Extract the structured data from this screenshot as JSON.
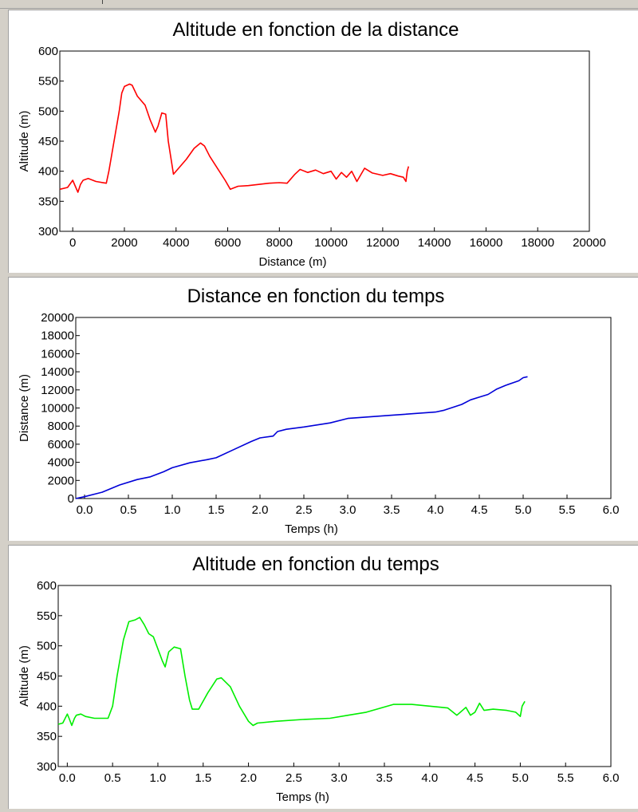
{
  "chart_data": [
    {
      "type": "line",
      "title": "Altitude en fonction de la distance",
      "xlabel": "Distance (m)",
      "ylabel": "Altitude (m)",
      "xlim": [
        -500,
        20000
      ],
      "ylim": [
        300,
        600
      ],
      "xticks": [
        0,
        2000,
        4000,
        6000,
        8000,
        10000,
        12000,
        14000,
        16000,
        18000,
        20000
      ],
      "yticks": [
        300,
        350,
        400,
        450,
        500,
        550,
        600
      ],
      "color": "#ff0000",
      "grid": false,
      "series": [
        {
          "name": "",
          "x": [
            -500,
            -200,
            0,
            100,
            200,
            300,
            400,
            600,
            900,
            1300,
            1400,
            1600,
            1800,
            1900,
            2000,
            2200,
            2300,
            2500,
            2800,
            3000,
            3200,
            3300,
            3450,
            3600,
            3700,
            3900,
            4100,
            4400,
            4700,
            4950,
            5100,
            5300,
            5600,
            5900,
            6100,
            6400,
            6800,
            7200,
            7600,
            8000,
            8300,
            8600,
            8800,
            9100,
            9400,
            9700,
            10000,
            10200,
            10400,
            10600,
            10800,
            11000,
            11300,
            11600,
            12000,
            12300,
            12600,
            12800,
            12900,
            12950,
            13000
          ],
          "y": [
            370,
            373,
            385,
            375,
            365,
            378,
            385,
            388,
            383,
            380,
            400,
            450,
            500,
            530,
            541,
            545,
            543,
            525,
            510,
            485,
            465,
            475,
            497,
            495,
            450,
            395,
            405,
            420,
            438,
            447,
            442,
            425,
            405,
            385,
            370,
            375,
            376,
            378,
            380,
            381,
            380,
            395,
            403,
            398,
            402,
            396,
            400,
            387,
            398,
            390,
            400,
            383,
            405,
            397,
            393,
            396,
            392,
            390,
            383,
            400,
            408
          ]
        }
      ]
    },
    {
      "type": "line",
      "title": "Distance en fonction du temps",
      "xlabel": "Temps (h)",
      "ylabel": "Distance (m)",
      "xlim": [
        -0.1,
        6.0
      ],
      "ylim": [
        0,
        20000
      ],
      "xticks": [
        0.0,
        0.5,
        1.0,
        1.5,
        2.0,
        2.5,
        3.0,
        3.5,
        4.0,
        4.5,
        5.0,
        5.5,
        6.0
      ],
      "yticks": [
        0,
        2000,
        4000,
        6000,
        8000,
        10000,
        12000,
        14000,
        16000,
        18000,
        20000
      ],
      "color": "#0000d8",
      "grid": false,
      "series": [
        {
          "name": "",
          "x": [
            -0.1,
            0.0,
            0.2,
            0.4,
            0.6,
            0.75,
            0.9,
            1.0,
            1.2,
            1.4,
            1.5,
            1.7,
            1.9,
            2.0,
            2.15,
            2.2,
            2.3,
            2.5,
            2.8,
            3.0,
            3.5,
            4.0,
            4.1,
            4.3,
            4.4,
            4.5,
            4.6,
            4.7,
            4.8,
            4.95,
            5.0,
            5.05
          ],
          "y": [
            0,
            200,
            700,
            1500,
            2100,
            2400,
            2950,
            3400,
            3950,
            4300,
            4500,
            5400,
            6300,
            6700,
            6900,
            7400,
            7650,
            7900,
            8350,
            8850,
            9200,
            9550,
            9750,
            10400,
            10900,
            11200,
            11500,
            12100,
            12500,
            13000,
            13350,
            13450
          ]
        }
      ]
    },
    {
      "type": "line",
      "title": "Altitude en fonction du temps",
      "xlabel": "Temps (h)",
      "ylabel": "Altitude (m)",
      "xlim": [
        -0.1,
        6.0
      ],
      "ylim": [
        300,
        600
      ],
      "xticks": [
        0.0,
        0.5,
        1.0,
        1.5,
        2.0,
        2.5,
        3.0,
        3.5,
        4.0,
        4.5,
        5.0,
        5.5,
        6.0
      ],
      "yticks": [
        300,
        350,
        400,
        450,
        500,
        550,
        600
      ],
      "color": "#00ee00",
      "grid": false,
      "series": [
        {
          "name": "",
          "x": [
            -0.1,
            -0.05,
            0.0,
            0.02,
            0.05,
            0.08,
            0.1,
            0.15,
            0.2,
            0.3,
            0.45,
            0.5,
            0.55,
            0.62,
            0.68,
            0.75,
            0.8,
            0.85,
            0.9,
            0.95,
            1.05,
            1.08,
            1.12,
            1.18,
            1.25,
            1.3,
            1.35,
            1.38,
            1.45,
            1.55,
            1.65,
            1.7,
            1.8,
            1.9,
            2.0,
            2.05,
            2.1,
            2.3,
            2.6,
            2.9,
            3.1,
            3.3,
            3.6,
            3.8,
            4.0,
            4.2,
            4.3,
            4.4,
            4.45,
            4.5,
            4.55,
            4.6,
            4.7,
            4.85,
            4.95,
            5.0,
            5.02,
            5.05
          ],
          "y": [
            370,
            372,
            387,
            380,
            368,
            380,
            385,
            387,
            383,
            380,
            380,
            400,
            450,
            510,
            540,
            543,
            547,
            535,
            520,
            515,
            475,
            465,
            490,
            498,
            495,
            450,
            410,
            395,
            395,
            422,
            445,
            447,
            432,
            400,
            375,
            368,
            372,
            375,
            378,
            380,
            385,
            390,
            403,
            403,
            400,
            397,
            385,
            398,
            385,
            390,
            405,
            393,
            395,
            393,
            390,
            383,
            400,
            408
          ]
        }
      ]
    }
  ]
}
